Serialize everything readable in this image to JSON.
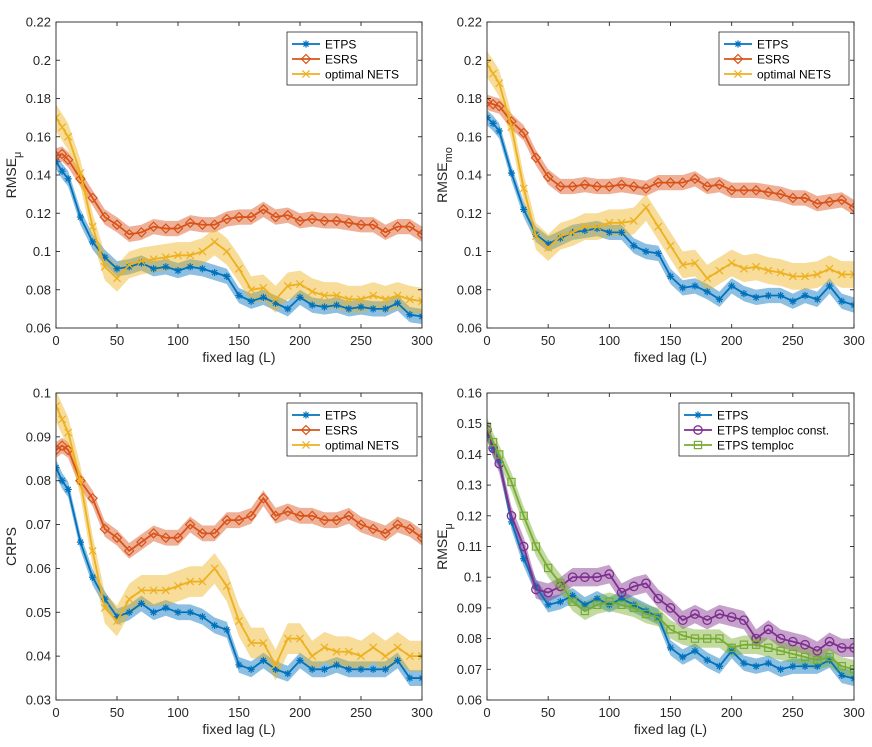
{
  "chart_data": [
    {
      "type": "line",
      "ylabel": "RMSE",
      "ylabel_sub": "μ",
      "xlabel": "fixed lag (L)",
      "xlim": [
        0,
        300
      ],
      "ylim": [
        0.06,
        0.22
      ],
      "xticks": [
        0,
        50,
        100,
        150,
        200,
        250,
        300
      ],
      "xtick_labels": [
        "0",
        "50",
        "100",
        "150",
        "200",
        "250",
        "300"
      ],
      "yticks": [
        0.06,
        0.08,
        0.1,
        0.12,
        0.14,
        0.16,
        0.18,
        0.2,
        0.22
      ],
      "ytick_labels": [
        "0.06",
        "0.08",
        "0.1",
        "0.12",
        "0.14",
        "0.16",
        "0.18",
        "0.2",
        "0.22"
      ],
      "legend_position": "top-right",
      "series": [
        {
          "name": "ETPS",
          "color": "#0072BD",
          "marker": "star",
          "band": 0.004,
          "x": [
            0,
            5,
            10,
            20,
            30,
            40,
            50,
            60,
            70,
            80,
            90,
            100,
            110,
            120,
            130,
            140,
            150,
            160,
            170,
            180,
            190,
            200,
            210,
            220,
            230,
            240,
            250,
            260,
            270,
            280,
            290,
            300
          ],
          "values": [
            0.147,
            0.142,
            0.138,
            0.118,
            0.105,
            0.097,
            0.091,
            0.092,
            0.094,
            0.091,
            0.092,
            0.09,
            0.092,
            0.091,
            0.089,
            0.087,
            0.077,
            0.074,
            0.076,
            0.073,
            0.07,
            0.076,
            0.072,
            0.071,
            0.072,
            0.07,
            0.071,
            0.07,
            0.07,
            0.073,
            0.067,
            0.066
          ]
        },
        {
          "name": "ESRS",
          "color": "#D95319",
          "marker": "diamond",
          "band": 0.004,
          "x": [
            0,
            5,
            10,
            20,
            30,
            40,
            50,
            60,
            70,
            80,
            90,
            100,
            110,
            120,
            130,
            140,
            150,
            160,
            170,
            180,
            190,
            200,
            210,
            220,
            230,
            240,
            250,
            260,
            270,
            280,
            290,
            300
          ],
          "values": [
            0.15,
            0.151,
            0.148,
            0.138,
            0.128,
            0.118,
            0.114,
            0.109,
            0.11,
            0.113,
            0.112,
            0.112,
            0.115,
            0.114,
            0.114,
            0.117,
            0.118,
            0.118,
            0.122,
            0.118,
            0.119,
            0.116,
            0.117,
            0.116,
            0.116,
            0.115,
            0.114,
            0.114,
            0.11,
            0.113,
            0.113,
            0.109
          ]
        },
        {
          "name": "optimal NETS",
          "color": "#EDB120",
          "marker": "x",
          "band": 0.007,
          "x": [
            0,
            5,
            10,
            20,
            30,
            40,
            50,
            60,
            70,
            80,
            90,
            100,
            110,
            120,
            130,
            140,
            150,
            160,
            170,
            180,
            190,
            200,
            210,
            220,
            230,
            240,
            250,
            260,
            270,
            280,
            290,
            300
          ],
          "values": [
            0.17,
            0.165,
            0.16,
            0.141,
            0.113,
            0.092,
            0.086,
            0.093,
            0.095,
            0.096,
            0.097,
            0.098,
            0.098,
            0.1,
            0.105,
            0.1,
            0.091,
            0.08,
            0.081,
            0.075,
            0.082,
            0.083,
            0.079,
            0.077,
            0.077,
            0.075,
            0.075,
            0.077,
            0.075,
            0.077,
            0.075,
            0.074
          ]
        }
      ]
    },
    {
      "type": "line",
      "ylabel": "RMSE",
      "ylabel_sub": "mo",
      "xlabel": "fixed lag (L)",
      "xlim": [
        0,
        300
      ],
      "ylim": [
        0.06,
        0.22
      ],
      "xticks": [
        0,
        50,
        100,
        150,
        200,
        250,
        300
      ],
      "xtick_labels": [
        "0",
        "50",
        "100",
        "150",
        "200",
        "250",
        "300"
      ],
      "yticks": [
        0.06,
        0.08,
        0.1,
        0.12,
        0.14,
        0.16,
        0.18,
        0.2,
        0.22
      ],
      "ytick_labels": [
        "0.06",
        "0.08",
        "0.1",
        "0.12",
        "0.14",
        "0.16",
        "0.18",
        "0.2",
        "0.22"
      ],
      "legend_position": "top-right",
      "series": [
        {
          "name": "ETPS",
          "color": "#0072BD",
          "marker": "star",
          "band": 0.004,
          "x": [
            0,
            5,
            10,
            20,
            30,
            40,
            50,
            60,
            70,
            80,
            90,
            100,
            110,
            120,
            130,
            140,
            150,
            160,
            170,
            180,
            190,
            200,
            210,
            220,
            230,
            240,
            250,
            260,
            270,
            280,
            290,
            300
          ],
          "values": [
            0.17,
            0.167,
            0.163,
            0.141,
            0.122,
            0.109,
            0.104,
            0.107,
            0.11,
            0.111,
            0.112,
            0.11,
            0.11,
            0.103,
            0.1,
            0.099,
            0.087,
            0.081,
            0.082,
            0.079,
            0.075,
            0.082,
            0.078,
            0.076,
            0.077,
            0.077,
            0.074,
            0.077,
            0.075,
            0.082,
            0.074,
            0.072
          ]
        },
        {
          "name": "ESRS",
          "color": "#D95319",
          "marker": "diamond",
          "band": 0.004,
          "x": [
            0,
            5,
            10,
            20,
            30,
            40,
            50,
            60,
            70,
            80,
            90,
            100,
            110,
            120,
            130,
            140,
            150,
            160,
            170,
            180,
            190,
            200,
            210,
            220,
            230,
            240,
            250,
            260,
            270,
            280,
            290,
            300
          ],
          "values": [
            0.178,
            0.177,
            0.176,
            0.168,
            0.162,
            0.149,
            0.139,
            0.134,
            0.134,
            0.135,
            0.134,
            0.134,
            0.135,
            0.134,
            0.133,
            0.136,
            0.136,
            0.136,
            0.138,
            0.134,
            0.135,
            0.132,
            0.132,
            0.132,
            0.131,
            0.13,
            0.128,
            0.128,
            0.125,
            0.126,
            0.127,
            0.123
          ]
        },
        {
          "name": "optimal NETS",
          "color": "#EDB120",
          "marker": "x",
          "band": 0.007,
          "x": [
            0,
            5,
            10,
            20,
            30,
            40,
            50,
            60,
            70,
            80,
            90,
            100,
            110,
            120,
            130,
            140,
            150,
            160,
            170,
            180,
            190,
            200,
            210,
            220,
            230,
            240,
            250,
            260,
            270,
            280,
            290,
            300
          ],
          "values": [
            0.198,
            0.193,
            0.188,
            0.165,
            0.133,
            0.108,
            0.102,
            0.108,
            0.11,
            0.113,
            0.113,
            0.115,
            0.115,
            0.116,
            0.123,
            0.113,
            0.103,
            0.093,
            0.094,
            0.086,
            0.09,
            0.094,
            0.091,
            0.092,
            0.09,
            0.089,
            0.087,
            0.087,
            0.088,
            0.091,
            0.088,
            0.088
          ]
        }
      ]
    },
    {
      "type": "line",
      "ylabel": "CRPS",
      "ylabel_sub": "",
      "xlabel": "fixed lag (L)",
      "xlim": [
        0,
        300
      ],
      "ylim": [
        0.03,
        0.1
      ],
      "xticks": [
        0,
        50,
        100,
        150,
        200,
        250,
        300
      ],
      "xtick_labels": [
        "0",
        "50",
        "100",
        "150",
        "200",
        "250",
        "300"
      ],
      "yticks": [
        0.03,
        0.04,
        0.05,
        0.06,
        0.07,
        0.08,
        0.09,
        0.1
      ],
      "ytick_labels": [
        "0.03",
        "0.04",
        "0.05",
        "0.06",
        "0.07",
        "0.08",
        "0.09",
        "0.1"
      ],
      "legend_position": "top-right",
      "series": [
        {
          "name": "ETPS",
          "color": "#0072BD",
          "marker": "star",
          "band": 0.0018,
          "x": [
            0,
            5,
            10,
            20,
            30,
            40,
            50,
            60,
            70,
            80,
            90,
            100,
            110,
            120,
            130,
            140,
            150,
            160,
            170,
            180,
            190,
            200,
            210,
            220,
            230,
            240,
            250,
            260,
            270,
            280,
            290,
            300
          ],
          "values": [
            0.083,
            0.08,
            0.078,
            0.066,
            0.058,
            0.053,
            0.049,
            0.05,
            0.052,
            0.05,
            0.051,
            0.05,
            0.05,
            0.049,
            0.047,
            0.046,
            0.038,
            0.037,
            0.039,
            0.037,
            0.036,
            0.039,
            0.037,
            0.037,
            0.038,
            0.037,
            0.037,
            0.037,
            0.037,
            0.039,
            0.035,
            0.035
          ]
        },
        {
          "name": "ESRS",
          "color": "#D95319",
          "marker": "diamond",
          "band": 0.0018,
          "x": [
            0,
            5,
            10,
            20,
            30,
            40,
            50,
            60,
            70,
            80,
            90,
            100,
            110,
            120,
            130,
            140,
            150,
            160,
            170,
            180,
            190,
            200,
            210,
            220,
            230,
            240,
            250,
            260,
            270,
            280,
            290,
            300
          ],
          "values": [
            0.087,
            0.088,
            0.087,
            0.08,
            0.076,
            0.069,
            0.067,
            0.064,
            0.066,
            0.068,
            0.067,
            0.067,
            0.07,
            0.068,
            0.068,
            0.071,
            0.071,
            0.072,
            0.076,
            0.072,
            0.073,
            0.072,
            0.072,
            0.071,
            0.071,
            0.072,
            0.07,
            0.069,
            0.068,
            0.07,
            0.069,
            0.067
          ]
        },
        {
          "name": "optimal NETS",
          "color": "#EDB120",
          "marker": "x",
          "band": 0.0035,
          "x": [
            0,
            5,
            10,
            20,
            30,
            40,
            50,
            60,
            70,
            80,
            90,
            100,
            110,
            120,
            130,
            140,
            150,
            160,
            170,
            180,
            190,
            200,
            210,
            220,
            230,
            240,
            250,
            260,
            270,
            280,
            290,
            300
          ],
          "values": [
            0.097,
            0.094,
            0.091,
            0.08,
            0.064,
            0.051,
            0.048,
            0.053,
            0.055,
            0.055,
            0.055,
            0.056,
            0.057,
            0.057,
            0.06,
            0.056,
            0.048,
            0.043,
            0.043,
            0.038,
            0.044,
            0.044,
            0.04,
            0.042,
            0.041,
            0.041,
            0.04,
            0.042,
            0.04,
            0.042,
            0.04,
            0.04
          ]
        }
      ]
    },
    {
      "type": "line",
      "ylabel": "RMSE",
      "ylabel_sub": "μ",
      "xlabel": "fixed lag (L)",
      "xlim": [
        0,
        300
      ],
      "ylim": [
        0.06,
        0.16
      ],
      "xticks": [
        0,
        50,
        100,
        150,
        200,
        250,
        300
      ],
      "xtick_labels": [
        "0",
        "50",
        "100",
        "150",
        "200",
        "250",
        "300"
      ],
      "yticks": [
        0.06,
        0.07,
        0.08,
        0.09,
        0.1,
        0.11,
        0.12,
        0.13,
        0.14,
        0.15,
        0.16
      ],
      "ytick_labels": [
        "0.06",
        "0.07",
        "0.08",
        "0.09",
        "0.1",
        "0.11",
        "0.12",
        "0.13",
        "0.14",
        "0.15",
        "0.16"
      ],
      "legend_position": "top-right",
      "series": [
        {
          "name": "ETPS",
          "color": "#0072BD",
          "marker": "star",
          "band": 0.0025,
          "x": [
            0,
            5,
            10,
            20,
            30,
            40,
            50,
            60,
            70,
            80,
            90,
            100,
            110,
            120,
            130,
            140,
            150,
            160,
            170,
            180,
            190,
            200,
            210,
            220,
            230,
            240,
            250,
            260,
            270,
            280,
            290,
            300
          ],
          "values": [
            0.147,
            0.142,
            0.138,
            0.118,
            0.106,
            0.097,
            0.091,
            0.092,
            0.094,
            0.091,
            0.093,
            0.091,
            0.093,
            0.091,
            0.089,
            0.087,
            0.077,
            0.074,
            0.076,
            0.073,
            0.071,
            0.076,
            0.072,
            0.071,
            0.072,
            0.07,
            0.071,
            0.071,
            0.071,
            0.073,
            0.068,
            0.067
          ]
        },
        {
          "name": "ETPS temploc const.",
          "color": "#7E2F8E",
          "marker": "circle",
          "band": 0.003,
          "x": [
            0,
            5,
            10,
            20,
            30,
            40,
            50,
            60,
            70,
            80,
            90,
            100,
            110,
            120,
            130,
            140,
            150,
            160,
            170,
            180,
            190,
            200,
            210,
            220,
            230,
            240,
            250,
            260,
            270,
            280,
            290,
            300
          ],
          "values": [
            0.148,
            0.142,
            0.137,
            0.12,
            0.11,
            0.096,
            0.095,
            0.097,
            0.1,
            0.1,
            0.1,
            0.101,
            0.095,
            0.097,
            0.098,
            0.093,
            0.09,
            0.086,
            0.088,
            0.086,
            0.088,
            0.087,
            0.086,
            0.08,
            0.083,
            0.08,
            0.079,
            0.078,
            0.076,
            0.079,
            0.077,
            0.077
          ]
        },
        {
          "name": "ETPS temploc",
          "color": "#77AC30",
          "marker": "square",
          "band": 0.003,
          "x": [
            0,
            5,
            10,
            20,
            30,
            40,
            50,
            60,
            70,
            80,
            90,
            100,
            110,
            120,
            130,
            140,
            150,
            160,
            170,
            180,
            190,
            200,
            210,
            220,
            230,
            240,
            250,
            260,
            270,
            280,
            290,
            300
          ],
          "values": [
            0.149,
            0.144,
            0.14,
            0.131,
            0.12,
            0.11,
            0.103,
            0.098,
            0.092,
            0.089,
            0.091,
            0.092,
            0.091,
            0.09,
            0.088,
            0.087,
            0.083,
            0.081,
            0.08,
            0.08,
            0.08,
            0.077,
            0.078,
            0.078,
            0.077,
            0.076,
            0.075,
            0.074,
            0.073,
            0.074,
            0.071,
            0.07
          ]
        }
      ]
    }
  ]
}
